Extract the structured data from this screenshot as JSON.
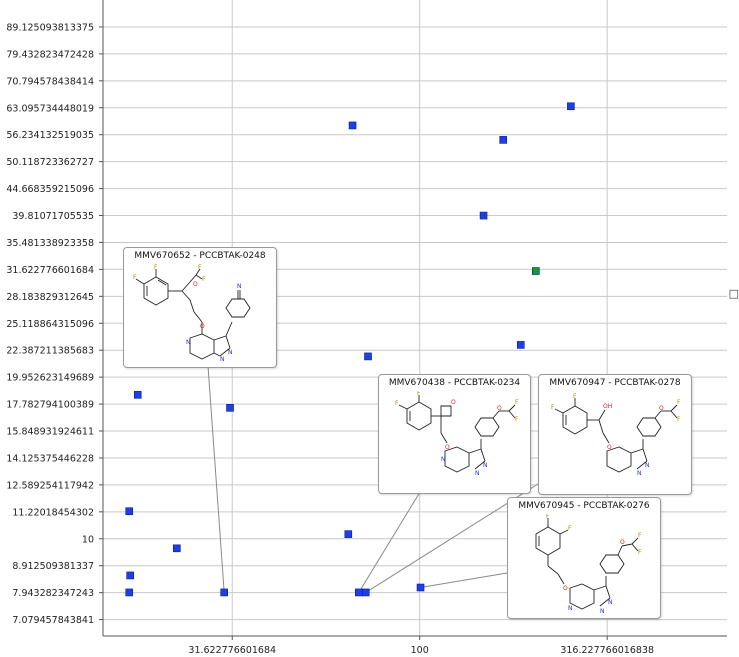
{
  "chart_data": {
    "type": "scatter",
    "title": "",
    "xlabel": "",
    "ylabel": "",
    "x_scale": "log",
    "y_scale": "log",
    "xlim": [
      14.3,
      660
    ],
    "ylim": [
      6.6,
      100
    ],
    "grid": true,
    "x_ticks": [
      "31.622776601684",
      "100",
      "316.227766016838"
    ],
    "y_ticks": [
      "89.125093813375",
      "79.432823472428",
      "70.794578438414",
      "63.095734448019",
      "56.234132519035",
      "50.118723362727",
      "44.668359215096",
      "39.81071705535",
      "35.481338923358",
      "31.622776601684",
      "28.183829312645",
      "25.118864315096",
      "22.387211385683",
      "19.952623149689",
      "17.782794100389",
      "15.848931924611",
      "14.125375446228",
      "12.589254117942",
      "11.22018454302",
      "10",
      "8.912509381337",
      "7.943282347243",
      "7.079457843841"
    ],
    "series": [
      {
        "marker_color": "#1f3fe6",
        "points": [
          {
            "x": 16.8,
            "y": 7.95
          },
          {
            "x": 16.9,
            "y": 8.55
          },
          {
            "x": 16.8,
            "y": 11.25
          },
          {
            "x": 17.7,
            "y": 18.5
          },
          {
            "x": 22.5,
            "y": 9.6
          },
          {
            "x": 30.1,
            "y": 7.95
          },
          {
            "x": 31.2,
            "y": 17.5
          },
          {
            "x": 64.5,
            "y": 10.2
          },
          {
            "x": 66.2,
            "y": 58.5
          },
          {
            "x": 72.8,
            "y": 21.8
          },
          {
            "x": 68.8,
            "y": 7.95
          },
          {
            "x": 71.8,
            "y": 7.95
          },
          {
            "x": 100.5,
            "y": 8.12
          },
          {
            "x": 148,
            "y": 39.8
          },
          {
            "x": 167,
            "y": 55.0
          },
          {
            "x": 186,
            "y": 22.9
          },
          {
            "x": 253,
            "y": 63.5
          }
        ]
      },
      {
        "marker_color": "#0e9a3a",
        "points": [
          {
            "x": 204,
            "y": 31.4
          }
        ]
      }
    ],
    "annotations": [
      {
        "label": "MMV670652 - PCCBTAK-0248",
        "x": 30.1,
        "y": 7.95
      },
      {
        "label": "MMV670438 - PCCBTAK-0234",
        "x": 68.8,
        "y": 7.95
      },
      {
        "label": "MMV670947 - PCCBTAK-0278",
        "x": 71.8,
        "y": 7.95
      },
      {
        "label": "MMV670945 - PCCBTAK-0276",
        "x": 100.5,
        "y": 8.12
      }
    ]
  },
  "colors": {
    "grid": "#c9c9c9",
    "axis": "#555555",
    "marker_primary": "#1f3fe6",
    "marker_highlight": "#0e9a3a",
    "callout_line": "#8a8a8a",
    "fluorine": "#b08a00",
    "oxygen": "#e02020",
    "nitrogen": "#2030d0"
  },
  "right_edge_glyph": "□"
}
